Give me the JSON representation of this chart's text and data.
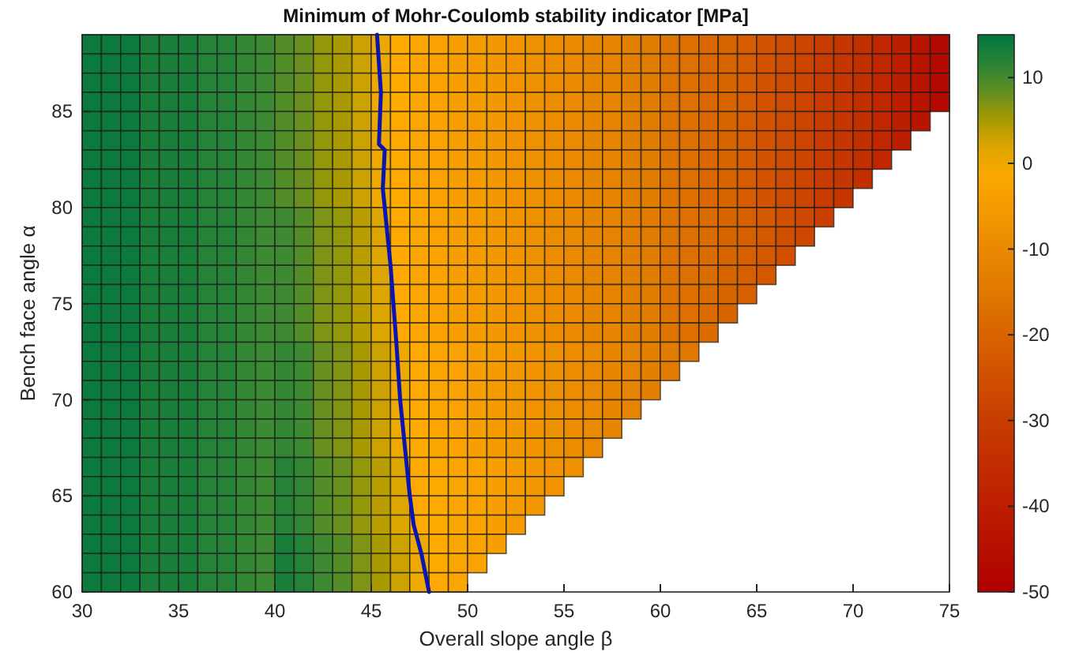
{
  "chart_data": {
    "type": "heatmap",
    "title": "Minimum of Mohr-Coulomb stability indicator [MPa]",
    "xlabel": "Overall slope angle β",
    "ylabel": "Bench face angle α",
    "xlim": [
      30,
      75
    ],
    "ylim": [
      60,
      89
    ],
    "xticks": [
      30,
      35,
      40,
      45,
      50,
      55,
      60,
      65,
      70,
      75
    ],
    "yticks": [
      60,
      65,
      70,
      75,
      80,
      85
    ],
    "clim": [
      -50,
      15
    ],
    "cticks": [
      -50,
      -40,
      -30,
      -20,
      -10,
      0,
      10
    ],
    "x": [
      30.5,
      31.5,
      32.5,
      33.5,
      34.5,
      35.5,
      36.5,
      37.5,
      38.5,
      39.5,
      40.5,
      41.5,
      42.5,
      43.5,
      44.5,
      45.5,
      46.5,
      47.5,
      48.5,
      49.5,
      50.5,
      51.5,
      52.5,
      53.5,
      54.5,
      55.5,
      56.5,
      57.5,
      58.5,
      59.5,
      60.5,
      61.5,
      62.5,
      63.5,
      64.5,
      65.5,
      66.5,
      67.5,
      68.5,
      69.5,
      70.5,
      71.5,
      72.5,
      73.5,
      74.5
    ],
    "y": [
      88.5,
      87.5,
      86.5,
      85.5,
      84.5,
      83.5,
      82.5,
      81.5,
      80.5,
      79.5,
      78.5,
      77.5,
      76.5,
      75.5,
      74.5,
      73.5,
      72.5,
      71.5,
      70.5,
      69.5,
      68.5,
      67.5,
      66.5,
      65.5,
      64.5,
      63.5,
      62.5,
      61.5,
      60.5
    ],
    "cells": [
      [
        14,
        14,
        14,
        13,
        13,
        13,
        12,
        12,
        11,
        10,
        9,
        8,
        6,
        5,
        3,
        1,
        -1,
        -2,
        -3,
        -4,
        -5,
        -6,
        -7,
        -8,
        -9,
        -10,
        -11,
        -12,
        -13,
        -14,
        -16,
        -17,
        -19,
        -20,
        -22,
        -24,
        -26,
        -28,
        -30,
        -32,
        -34,
        -37,
        -40,
        -43,
        -47
      ],
      [
        14,
        14,
        14,
        13,
        13,
        13,
        12,
        12,
        11,
        10,
        9,
        8,
        6,
        5,
        3,
        1,
        -1,
        -2,
        -3,
        -4,
        -5,
        -6,
        -7,
        -8,
        -9,
        -10,
        -11,
        -12,
        -13,
        -14,
        -16,
        -17,
        -19,
        -20,
        -22,
        -24,
        -26,
        -28,
        -30,
        -32,
        -34,
        -37,
        -40,
        -43,
        -47
      ],
      [
        14,
        14,
        14,
        13,
        13,
        13,
        12,
        12,
        11,
        10,
        9,
        8,
        6,
        5,
        3,
        1,
        -1,
        -2,
        -3,
        -4,
        -5,
        -6,
        -7,
        -8,
        -9,
        -10,
        -11,
        -12,
        -13,
        -14,
        -16,
        -17,
        -19,
        -20,
        -22,
        -24,
        -26,
        -28,
        -30,
        -32,
        -34,
        -37,
        -40,
        -43,
        -47
      ],
      [
        14,
        14,
        14,
        13,
        13,
        13,
        12,
        12,
        11,
        10,
        9,
        8,
        6,
        5,
        3,
        1,
        -1,
        -2,
        -3,
        -4,
        -5,
        -6,
        -7,
        -8,
        -9,
        -10,
        -11,
        -12,
        -13,
        -14,
        -16,
        -17,
        -19,
        -20,
        -22,
        -24,
        -26,
        -28,
        -30,
        -32,
        -34,
        -37,
        -40,
        -43,
        -47
      ],
      [
        14,
        14,
        14,
        13,
        13,
        13,
        12,
        12,
        11,
        10,
        9,
        8,
        6,
        5,
        3,
        1,
        -1,
        -2,
        -3,
        -4,
        -5,
        -6,
        -7,
        -8,
        -9,
        -10,
        -11,
        -12,
        -13,
        -14,
        -16,
        -17,
        -19,
        -20,
        -22,
        -24,
        -26,
        -28,
        -30,
        -32,
        -34,
        -37,
        -40,
        -43,
        null
      ],
      [
        14,
        14,
        14,
        13,
        13,
        13,
        12,
        12,
        11,
        10,
        9,
        8,
        6,
        5,
        3,
        1,
        -1,
        -2,
        -3,
        -4,
        -5,
        -6,
        -7,
        -8,
        -9,
        -10,
        -11,
        -12,
        -13,
        -14,
        -16,
        -17,
        -19,
        -20,
        -22,
        -24,
        -26,
        -28,
        -30,
        -32,
        -34,
        -37,
        -40,
        null,
        null
      ],
      [
        14,
        14,
        14,
        13,
        13,
        13,
        12,
        12,
        11,
        10,
        9,
        8,
        6,
        5,
        3,
        1,
        -1,
        -2,
        -3,
        -4,
        -5,
        -6,
        -7,
        -8,
        -9,
        -10,
        -11,
        -12,
        -13,
        -14,
        -16,
        -17,
        -19,
        -20,
        -22,
        -24,
        -26,
        -28,
        -30,
        -32,
        -34,
        -37,
        null,
        null,
        null
      ],
      [
        14,
        14,
        14,
        13,
        13,
        13,
        12,
        12,
        11,
        10,
        9,
        8,
        6,
        5,
        3,
        1,
        -1,
        -2,
        -3,
        -4,
        -5,
        -6,
        -7,
        -8,
        -9,
        -10,
        -11,
        -12,
        -13,
        -14,
        -16,
        -17,
        -19,
        -20,
        -22,
        -24,
        -26,
        -28,
        -30,
        -32,
        -34,
        null,
        null,
        null,
        null
      ],
      [
        14,
        14,
        14,
        13,
        13,
        13,
        12,
        12,
        11,
        10,
        9,
        8,
        6,
        5,
        3,
        1,
        -1,
        -2,
        -3,
        -4,
        -5,
        -6,
        -7,
        -8,
        -9,
        -10,
        -11,
        -12,
        -13,
        -14,
        -16,
        -17,
        -19,
        -20,
        -22,
        -24,
        -26,
        -28,
        -30,
        -32,
        null,
        null,
        null,
        null,
        null
      ],
      [
        14,
        14,
        14,
        13,
        13,
        13,
        12,
        12,
        11,
        10,
        10,
        9,
        7,
        6,
        4,
        2,
        -1,
        -2,
        -3,
        -4,
        -5,
        -6,
        -7,
        -8,
        -9,
        -10,
        -11,
        -12,
        -13,
        -14,
        -16,
        -17,
        -18,
        -20,
        -21,
        -23,
        -25,
        -27,
        -29,
        null,
        null,
        null,
        null,
        null,
        null
      ],
      [
        14,
        14,
        14,
        13,
        13,
        13,
        12,
        12,
        11,
        10,
        10,
        9,
        7,
        6,
        4,
        2,
        -1,
        -2,
        -3,
        -4,
        -5,
        -6,
        -7,
        -8,
        -9,
        -10,
        -11,
        -12,
        -13,
        -14,
        -16,
        -17,
        -18,
        -20,
        -21,
        -23,
        -25,
        -27,
        null,
        null,
        null,
        null,
        null,
        null,
        null
      ],
      [
        14,
        14,
        14,
        13,
        13,
        13,
        12,
        12,
        11,
        10,
        10,
        9,
        7,
        6,
        4,
        2,
        -1,
        -2,
        -3,
        -4,
        -5,
        -6,
        -7,
        -8,
        -9,
        -10,
        -11,
        -12,
        -13,
        -14,
        -16,
        -17,
        -18,
        -20,
        -21,
        -23,
        -25,
        null,
        null,
        null,
        null,
        null,
        null,
        null,
        null
      ],
      [
        14,
        14,
        14,
        13,
        13,
        13,
        12,
        12,
        11,
        10,
        10,
        9,
        7,
        6,
        4,
        2,
        -1,
        -2,
        -3,
        -4,
        -5,
        -6,
        -7,
        -8,
        -9,
        -10,
        -11,
        -12,
        -13,
        -14,
        -16,
        -17,
        -18,
        -20,
        -21,
        -23,
        null,
        null,
        null,
        null,
        null,
        null,
        null,
        null,
        null
      ],
      [
        14,
        14,
        14,
        13,
        13,
        13,
        12,
        12,
        11,
        10,
        10,
        9,
        7,
        6,
        4,
        2,
        -1,
        -2,
        -3,
        -4,
        -5,
        -6,
        -7,
        -8,
        -9,
        -10,
        -11,
        -12,
        -13,
        -14,
        -16,
        -17,
        -18,
        -20,
        -21,
        null,
        null,
        null,
        null,
        null,
        null,
        null,
        null,
        null,
        null
      ],
      [
        14,
        14,
        14,
        13,
        13,
        13,
        12,
        12,
        11,
        10,
        10,
        9,
        7,
        6,
        4,
        2,
        -1,
        -2,
        -3,
        -4,
        -5,
        -6,
        -7,
        -8,
        -9,
        -10,
        -11,
        -12,
        -13,
        -14,
        -16,
        -17,
        -18,
        -20,
        null,
        null,
        null,
        null,
        null,
        null,
        null,
        null,
        null,
        null,
        null
      ],
      [
        14,
        14,
        14,
        13,
        13,
        13,
        12,
        12,
        11,
        10,
        10,
        9,
        7,
        6,
        4,
        2,
        -1,
        -2,
        -3,
        -4,
        -5,
        -6,
        -7,
        -8,
        -9,
        -10,
        -11,
        -12,
        -13,
        -14,
        -16,
        -17,
        -18,
        null,
        null,
        null,
        null,
        null,
        null,
        null,
        null,
        null,
        null,
        null,
        null
      ],
      [
        14,
        14,
        14,
        13,
        13,
        13,
        12,
        12,
        11,
        10,
        11,
        10,
        8,
        7,
        5,
        3,
        1,
        -1,
        -2,
        -3,
        -4,
        -5,
        -6,
        -7,
        -8,
        -9,
        -10,
        -11,
        -12,
        -13,
        -14,
        -15,
        null,
        null,
        null,
        null,
        null,
        null,
        null,
        null,
        null,
        null,
        null,
        null,
        null
      ],
      [
        14,
        14,
        14,
        13,
        13,
        13,
        12,
        12,
        11,
        10,
        11,
        10,
        8,
        7,
        5,
        3,
        1,
        -1,
        -2,
        -3,
        -4,
        -5,
        -6,
        -7,
        -8,
        -9,
        -10,
        -11,
        -12,
        -13,
        -14,
        null,
        null,
        null,
        null,
        null,
        null,
        null,
        null,
        null,
        null,
        null,
        null,
        null,
        null
      ],
      [
        14,
        14,
        14,
        13,
        13,
        13,
        12,
        12,
        11,
        10,
        11,
        10,
        8,
        7,
        5,
        3,
        1,
        -1,
        -2,
        -3,
        -4,
        -5,
        -6,
        -7,
        -8,
        -9,
        -10,
        -11,
        -12,
        -13,
        null,
        null,
        null,
        null,
        null,
        null,
        null,
        null,
        null,
        null,
        null,
        null,
        null,
        null,
        null
      ],
      [
        14,
        14,
        14,
        13,
        13,
        13,
        12,
        12,
        11,
        10,
        11,
        10,
        8,
        7,
        5,
        3,
        1,
        -1,
        -2,
        -3,
        -4,
        -5,
        -6,
        -7,
        -8,
        -9,
        -10,
        -11,
        -12,
        null,
        null,
        null,
        null,
        null,
        null,
        null,
        null,
        null,
        null,
        null,
        null,
        null,
        null,
        null,
        null
      ],
      [
        14,
        14,
        14,
        13,
        13,
        13,
        12,
        12,
        11,
        10,
        11,
        10,
        8,
        7,
        5,
        3,
        1,
        -1,
        -2,
        -3,
        -4,
        -5,
        -6,
        -7,
        -8,
        -9,
        -10,
        -11,
        null,
        null,
        null,
        null,
        null,
        null,
        null,
        null,
        null,
        null,
        null,
        null,
        null,
        null,
        null,
        null,
        null
      ],
      [
        14,
        14,
        14,
        13,
        13,
        13,
        12,
        12,
        11,
        10,
        11,
        10,
        8,
        7,
        5,
        3,
        1,
        -1,
        -2,
        -3,
        -4,
        -5,
        -6,
        -7,
        -8,
        -9,
        -10,
        null,
        null,
        null,
        null,
        null,
        null,
        null,
        null,
        null,
        null,
        null,
        null,
        null,
        null,
        null,
        null,
        null,
        null
      ],
      [
        14,
        14,
        14,
        13,
        13,
        13,
        12,
        12,
        11,
        10,
        12,
        11,
        9,
        8,
        6,
        4,
        2,
        -1,
        -1,
        -2,
        -3,
        -4,
        -5,
        -6,
        -7,
        -8,
        null,
        null,
        null,
        null,
        null,
        null,
        null,
        null,
        null,
        null,
        null,
        null,
        null,
        null,
        null,
        null,
        null,
        null,
        null
      ],
      [
        14,
        14,
        14,
        13,
        13,
        13,
        12,
        12,
        11,
        10,
        12,
        11,
        9,
        8,
        6,
        4,
        2,
        -1,
        -1,
        -2,
        -3,
        -4,
        -5,
        -6,
        -7,
        null,
        null,
        null,
        null,
        null,
        null,
        null,
        null,
        null,
        null,
        null,
        null,
        null,
        null,
        null,
        null,
        null,
        null,
        null,
        null
      ],
      [
        14,
        14,
        14,
        13,
        13,
        13,
        12,
        12,
        11,
        10,
        12,
        11,
        9,
        8,
        6,
        4,
        2,
        -1,
        -1,
        -2,
        -3,
        -4,
        -5,
        -6,
        null,
        null,
        null,
        null,
        null,
        null,
        null,
        null,
        null,
        null,
        null,
        null,
        null,
        null,
        null,
        null,
        null,
        null,
        null,
        null,
        null
      ],
      [
        14,
        14,
        14,
        13,
        13,
        13,
        12,
        12,
        11,
        10,
        12,
        11,
        9,
        8,
        6,
        4,
        2,
        -1,
        -1,
        -2,
        -3,
        -4,
        -5,
        null,
        null,
        null,
        null,
        null,
        null,
        null,
        null,
        null,
        null,
        null,
        null,
        null,
        null,
        null,
        null,
        null,
        null,
        null,
        null,
        null,
        null
      ],
      [
        14,
        14,
        14,
        13,
        13,
        13,
        12,
        12,
        11,
        10,
        13,
        12,
        10,
        9,
        7,
        5,
        3,
        1,
        -1,
        -2,
        -3,
        -4,
        null,
        null,
        null,
        null,
        null,
        null,
        null,
        null,
        null,
        null,
        null,
        null,
        null,
        null,
        null,
        null,
        null,
        null,
        null,
        null,
        null,
        null,
        null
      ],
      [
        14,
        14,
        14,
        13,
        13,
        13,
        12,
        12,
        11,
        10,
        13,
        12,
        10,
        9,
        7,
        5,
        3,
        1,
        -1,
        -2,
        -3,
        null,
        null,
        null,
        null,
        null,
        null,
        null,
        null,
        null,
        null,
        null,
        null,
        null,
        null,
        null,
        null,
        null,
        null,
        null,
        null,
        null,
        null,
        null,
        null
      ],
      [
        14,
        14,
        14,
        13,
        13,
        13,
        12,
        12,
        11,
        10,
        13,
        12,
        10,
        9,
        7,
        5,
        3,
        1,
        -1,
        -2,
        null,
        null,
        null,
        null,
        null,
        null,
        null,
        null,
        null,
        null,
        null,
        null,
        null,
        null,
        null,
        null,
        null,
        null,
        null,
        null,
        null,
        null,
        null,
        null,
        null
      ]
    ],
    "series": [
      {
        "type": "line",
        "color": "#0a14b4",
        "x": [
          45.3,
          45.5,
          45.4,
          45.7,
          45.6,
          45.8,
          46,
          46.3,
          46.5,
          46.8,
          47,
          47.2,
          47.6,
          48
        ],
        "values": [
          89,
          86,
          83.3,
          83,
          81,
          79,
          77,
          73,
          70,
          67,
          65,
          63.5,
          62,
          60
        ]
      }
    ]
  }
}
